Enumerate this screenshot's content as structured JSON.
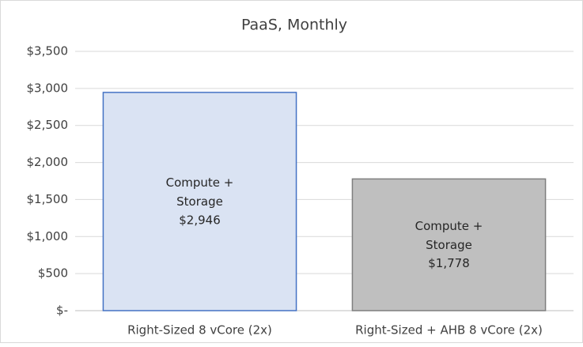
{
  "chart_data": {
    "type": "bar",
    "title": "PaaS, Monthly",
    "categories": [
      "Right-Sized 8 vCore (2x)",
      "Right-Sized + AHB 8 vCore (2x)"
    ],
    "series": [
      {
        "name": "Compute + Storage",
        "values": [
          2946,
          1778
        ],
        "value_labels": [
          "$2,946",
          "$1,778"
        ],
        "colors": [
          "#dae3f3",
          "#bfbfbf"
        ],
        "edge_colors": [
          "#4472c4",
          "#7f7f7f"
        ]
      }
    ],
    "ylim": [
      0,
      3500
    ],
    "yticks": [
      {
        "value": 0,
        "label": "$-"
      },
      {
        "value": 500,
        "label": "$500"
      },
      {
        "value": 1000,
        "label": "$1,000"
      },
      {
        "value": 1500,
        "label": "$1,500"
      },
      {
        "value": 2000,
        "label": "$2,000"
      },
      {
        "value": 2500,
        "label": "$2,500"
      },
      {
        "value": 3000,
        "label": "$3,000"
      },
      {
        "value": 3500,
        "label": "$3,500"
      }
    ],
    "grid": true
  }
}
